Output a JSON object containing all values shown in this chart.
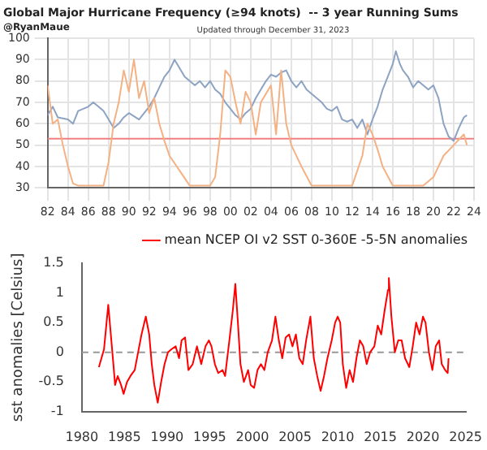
{
  "chart_data": [
    {
      "type": "line",
      "title": "Global Major Hurricane Frequency (≥94 knots)  -- 3 year Running Sums",
      "subtitle": "@RyanMaue",
      "annotations": [
        "Updated through December 31, 2023"
      ],
      "series": [
        {
          "color": "#f4b183",
          "x": [
            1982,
            1982.5,
            1983,
            1983.5,
            1984,
            1984.5,
            1985,
            1986,
            1987,
            1987.5,
            1988,
            1988.5,
            1989,
            1989.5,
            1990,
            1990.5,
            1991,
            1991.5,
            1992,
            1992.5,
            1993,
            1993.5,
            1994,
            1995,
            1996,
            1997,
            1998,
            1998.5,
            1999,
            1999.5,
            2000,
            2000.5,
            2001,
            2001.5,
            2002,
            2002.5,
            2003,
            2004,
            2004.5,
            2005,
            2005.5,
            2006,
            2007,
            2008,
            2009,
            2010,
            2011,
            2012,
            2013,
            2013.5,
            2014,
            2014.5,
            2015,
            2016,
            2017,
            2018,
            2019,
            2020,
            2021,
            2022,
            2023,
            2023.3
          ],
          "values": [
            78,
            60,
            62,
            50,
            40,
            32,
            31,
            31,
            31,
            31,
            42,
            60,
            70,
            85,
            75,
            90,
            72,
            80,
            65,
            72,
            60,
            52,
            45,
            38,
            31,
            31,
            31,
            35,
            55,
            85,
            82,
            70,
            60,
            75,
            70,
            55,
            70,
            78,
            55,
            85,
            60,
            50,
            40,
            31,
            31,
            31,
            31,
            31,
            45,
            60,
            55,
            48,
            40,
            31,
            31,
            31,
            31,
            35,
            45,
            50,
            55,
            50
          ]
        },
        {
          "color": "#8da3c4",
          "x": [
            1982,
            1982.5,
            1983,
            1984,
            1984.5,
            1985,
            1986,
            1986.5,
            1987,
            1987.5,
            1988,
            1988.5,
            1989,
            1989.5,
            1990,
            1991,
            1992,
            1992.5,
            1993,
            1993.5,
            1994,
            1994.5,
            1995,
            1995.5,
            1996,
            1996.5,
            1997,
            1997.5,
            1998,
            1998.5,
            1999,
            1999.5,
            2000,
            2000.5,
            2001,
            2001.5,
            2002,
            2002.5,
            2003,
            2003.5,
            2004,
            2004.5,
            2005,
            2005.5,
            2006,
            2006.5,
            2007,
            2007.5,
            2008,
            2008.5,
            2009,
            2009.5,
            2010,
            2010.5,
            2011,
            2011.5,
            2012,
            2012.5,
            2013,
            2013.5,
            2014,
            2014.5,
            2015,
            2015.5,
            2016,
            2016.3,
            2016.7,
            2017,
            2017.5,
            2018,
            2018.5,
            2019,
            2019.5,
            2020,
            2020.5,
            2021,
            2021.5,
            2022,
            2022.5,
            2023,
            2023.3
          ],
          "values": [
            64,
            68,
            63,
            62,
            60,
            66,
            68,
            70,
            68,
            66,
            62,
            58,
            60,
            63,
            65,
            62,
            68,
            72,
            77,
            82,
            85,
            90,
            86,
            82,
            80,
            78,
            80,
            77,
            80,
            76,
            74,
            70,
            67,
            64,
            62,
            65,
            67,
            72,
            76,
            80,
            83,
            82,
            84,
            85,
            80,
            77,
            80,
            76,
            74,
            72,
            70,
            67,
            66,
            68,
            62,
            61,
            62,
            58,
            62,
            55,
            62,
            68,
            76,
            82,
            88,
            94,
            88,
            85,
            82,
            77,
            80,
            78,
            76,
            78,
            72,
            60,
            54,
            52,
            58,
            63,
            64
          ]
        }
      ],
      "xlim": [
        1982,
        2024
      ],
      "xticks": [
        {
          "value": 1982,
          "label": "82"
        },
        {
          "value": 1984,
          "label": "84"
        },
        {
          "value": 1986,
          "label": "86"
        },
        {
          "value": 1988,
          "label": "88"
        },
        {
          "value": 1990,
          "label": "90"
        },
        {
          "value": 1992,
          "label": "92"
        },
        {
          "value": 1994,
          "label": "94"
        },
        {
          "value": 1996,
          "label": "96"
        },
        {
          "value": 1998,
          "label": "98"
        },
        {
          "value": 2000,
          "label": "00"
        },
        {
          "value": 2002,
          "label": "02"
        },
        {
          "value": 2004,
          "label": "04"
        },
        {
          "value": 2006,
          "label": "06"
        },
        {
          "value": 2008,
          "label": "08"
        },
        {
          "value": 2010,
          "label": "10"
        },
        {
          "value": 2012,
          "label": "12"
        },
        {
          "value": 2014,
          "label": "14"
        },
        {
          "value": 2016,
          "label": "16"
        },
        {
          "value": 2018,
          "label": "18"
        },
        {
          "value": 2020,
          "label": "20"
        },
        {
          "value": 2022,
          "label": "22"
        },
        {
          "value": 2024,
          "label": "24"
        }
      ],
      "ylim": [
        30,
        100
      ],
      "yticks": [
        30,
        40,
        50,
        60,
        70,
        80,
        90,
        100
      ],
      "ref_lines": [
        {
          "axis": "y",
          "value": 53,
          "color": "#f08080"
        }
      ],
      "grid": true,
      "legend": false
    },
    {
      "type": "line",
      "ylabel": "sst anomalies [Celsius]",
      "series": [
        {
          "name": "mean NCEP OI v2 SST 0-360E -5-5N anomalies",
          "color": "#ff0000",
          "x": [
            1982,
            1982.3,
            1982.6,
            1982.9,
            1983.1,
            1983.4,
            1983.7,
            1983.9,
            1984.2,
            1984.6,
            1984.9,
            1985.3,
            1985.7,
            1986.2,
            1986.6,
            1987,
            1987.5,
            1987.9,
            1988.2,
            1988.5,
            1988.9,
            1989.3,
            1989.7,
            1990.1,
            1990.5,
            1991,
            1991.4,
            1991.7,
            1992.1,
            1992.5,
            1993,
            1993.5,
            1994,
            1994.5,
            1994.9,
            1995.2,
            1995.6,
            1996,
            1996.5,
            1996.8,
            1997.3,
            1997.7,
            1998,
            1998.3,
            1998.6,
            1999,
            1999.5,
            1999.8,
            2000.2,
            2000.6,
            2001,
            2001.4,
            2001.8,
            2002.3,
            2002.7,
            2003.1,
            2003.5,
            2003.9,
            2004.3,
            2004.7,
            2005.1,
            2005.5,
            2005.9,
            2006.3,
            2006.8,
            2007.2,
            2007.6,
            2008,
            2008.4,
            2008.8,
            2009.3,
            2009.7,
            2010,
            2010.3,
            2010.6,
            2011,
            2011.4,
            2011.8,
            2012.2,
            2012.6,
            2013,
            2013.4,
            2013.8,
            2014.3,
            2014.7,
            2015.1,
            2015.5,
            2015.9,
            2016,
            2016.3,
            2016.7,
            2017.1,
            2017.5,
            2017.9,
            2018.4,
            2018.8,
            2019.2,
            2019.6,
            2020,
            2020.3,
            2020.7,
            2021.1,
            2021.5,
            2021.9,
            2022.2,
            2022.6,
            2022.9,
            2023
          ],
          "values": [
            -0.25,
            -0.1,
            0.05,
            0.5,
            0.8,
            0.3,
            -0.2,
            -0.55,
            -0.4,
            -0.55,
            -0.7,
            -0.5,
            -0.4,
            -0.3,
            0,
            0.3,
            0.6,
            0.3,
            -0.2,
            -0.55,
            -0.85,
            -0.5,
            -0.2,
            0,
            0.05,
            0.1,
            -0.1,
            0.2,
            0.25,
            -0.3,
            -0.2,
            0.1,
            -0.2,
            0.1,
            0.2,
            0.1,
            -0.2,
            -0.35,
            -0.3,
            -0.4,
            0.2,
            0.7,
            1.15,
            0.5,
            -0.2,
            -0.5,
            -0.3,
            -0.55,
            -0.6,
            -0.3,
            -0.2,
            -0.3,
            0,
            0.2,
            0.6,
            0.2,
            -0.1,
            0.25,
            0.3,
            0.1,
            0.3,
            -0.1,
            -0.2,
            0.2,
            0.6,
            -0.1,
            -0.4,
            -0.65,
            -0.4,
            -0.1,
            0.2,
            0.5,
            0.6,
            0.5,
            -0.2,
            -0.6,
            -0.3,
            -0.5,
            -0.1,
            0.2,
            0.1,
            -0.2,
            0,
            0.1,
            0.45,
            0.3,
            0.7,
            1.05,
            1.25,
            0.6,
            0,
            0.2,
            0.2,
            -0.1,
            -0.25,
            0.1,
            0.5,
            0.3,
            0.6,
            0.5,
            0,
            -0.3,
            0.1,
            0.2,
            -0.2,
            -0.3,
            -0.35,
            -0.1
          ]
        }
      ],
      "xlim": [
        1980,
        2025
      ],
      "xticks": [
        1980,
        1985,
        1990,
        1995,
        2000,
        2005,
        2010,
        2015,
        2020,
        2025
      ],
      "ylim": [
        -1,
        1.5
      ],
      "yticks": [
        -1,
        -0.5,
        0,
        0.5,
        1,
        1.5
      ],
      "ref_lines": [
        {
          "axis": "y",
          "value": 0,
          "color": "#999999",
          "line_style": "dashed"
        }
      ],
      "grid": false,
      "legend": "top right"
    }
  ]
}
